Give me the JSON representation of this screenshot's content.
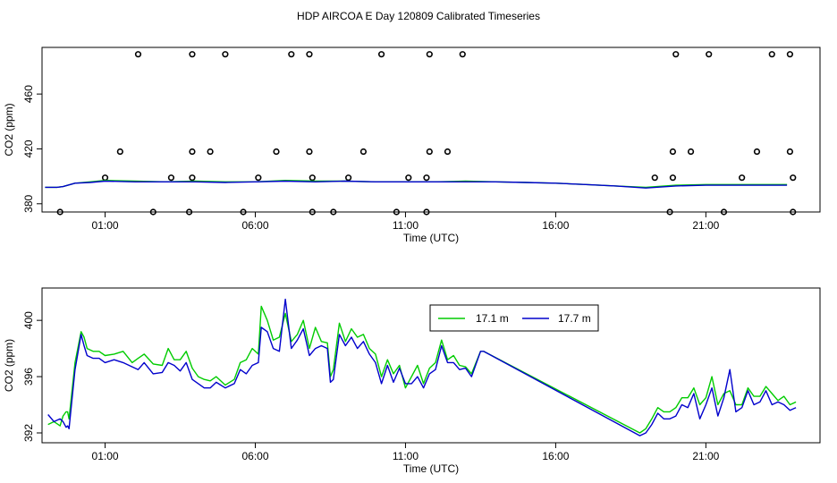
{
  "title": "HDP AIRCOA E  Day 120809  Calibrated Timeseries",
  "chart_data": [
    {
      "type": "scatter+line",
      "xlabel": "Time (UTC)",
      "ylabel": "CO2 (ppm)",
      "xticks": [
        "01:00",
        "06:00",
        "11:00",
        "16:00",
        "21:00"
      ],
      "xtick_values": [
        1,
        6,
        11,
        16,
        21
      ],
      "yticks": [
        380,
        420,
        460
      ],
      "xlim": [
        -1.1,
        24.8
      ],
      "ylim": [
        374,
        494
      ],
      "colors": {
        "line_a": "#00cc00",
        "line_b": "#0000cc",
        "points": "#000000"
      },
      "points": [
        [
          1.0,
          399
        ],
        [
          -0.5,
          374
        ],
        [
          1.5,
          418
        ],
        [
          2.1,
          489
        ],
        [
          2.6,
          374
        ],
        [
          3.2,
          399
        ],
        [
          3.8,
          374
        ],
        [
          3.9,
          399
        ],
        [
          3.9,
          418
        ],
        [
          3.9,
          489
        ],
        [
          4.5,
          418
        ],
        [
          5.0,
          489
        ],
        [
          5.6,
          374
        ],
        [
          6.1,
          399
        ],
        [
          6.7,
          418
        ],
        [
          7.2,
          489
        ],
        [
          7.8,
          489
        ],
        [
          7.8,
          418
        ],
        [
          7.9,
          399
        ],
        [
          7.9,
          374
        ],
        [
          8.6,
          374
        ],
        [
          9.1,
          399
        ],
        [
          9.6,
          418
        ],
        [
          10.2,
          489
        ],
        [
          10.7,
          374
        ],
        [
          11.1,
          399
        ],
        [
          11.7,
          374
        ],
        [
          11.7,
          399
        ],
        [
          11.8,
          418
        ],
        [
          11.8,
          489
        ],
        [
          12.4,
          418
        ],
        [
          12.9,
          489
        ],
        [
          19.3,
          399
        ],
        [
          19.8,
          374
        ],
        [
          19.9,
          399
        ],
        [
          19.9,
          418
        ],
        [
          20.0,
          489
        ],
        [
          20.5,
          418
        ],
        [
          21.1,
          489
        ],
        [
          21.6,
          374
        ],
        [
          22.2,
          399
        ],
        [
          22.7,
          418
        ],
        [
          23.2,
          489
        ],
        [
          23.8,
          489
        ],
        [
          23.8,
          418
        ],
        [
          23.9,
          399
        ],
        [
          23.9,
          374
        ]
      ],
      "series": [
        {
          "x": [
            -1.0,
            -0.6,
            -0.4,
            0.0,
            0.5,
            1.0,
            2.0,
            3.0,
            4.0,
            5.0,
            6.0,
            7.0,
            8.0,
            9.0,
            10.0,
            11.0,
            12.0,
            13.0,
            14.0,
            15.0,
            16.0,
            17.0,
            18.0,
            19.0,
            20.0,
            21.0,
            22.0,
            23.0,
            23.7
          ],
          "values": [
            392,
            392,
            392.5,
            395,
            396,
            397,
            396.5,
            396,
            396.5,
            396,
            396,
            397,
            396.5,
            396.5,
            396,
            396,
            396,
            396.5,
            396,
            395.5,
            395,
            394,
            393,
            392,
            393.5,
            394,
            394,
            394,
            394
          ]
        },
        {
          "x": [
            -1.0,
            -0.6,
            -0.4,
            0.0,
            0.5,
            1.0,
            2.0,
            3.0,
            4.0,
            5.0,
            6.0,
            7.0,
            8.0,
            9.0,
            10.0,
            11.0,
            12.0,
            13.0,
            14.0,
            15.0,
            16.0,
            17.0,
            18.0,
            19.0,
            20.0,
            21.0,
            22.0,
            23.0,
            23.7
          ],
          "values": [
            392,
            392,
            392.5,
            395,
            395.5,
            396.5,
            396,
            396,
            396,
            395.5,
            396,
            396.5,
            396,
            396.5,
            396,
            396,
            396,
            396,
            396,
            395.5,
            395,
            394,
            393,
            391.5,
            393,
            393.5,
            393.5,
            393.5,
            393.5
          ]
        }
      ]
    },
    {
      "type": "line",
      "xlabel": "Time (UTC)",
      "ylabel": "CO2 (ppm)",
      "xticks": [
        "01:00",
        "06:00",
        "11:00",
        "16:00",
        "21:00"
      ],
      "xtick_values": [
        1,
        6,
        11,
        16,
        21
      ],
      "yticks": [
        392,
        396,
        400
      ],
      "xlim": [
        -1.1,
        24.8
      ],
      "ylim": [
        391.3,
        402.3
      ],
      "legend_position": "top-center",
      "series": [
        {
          "name": "17.1 m",
          "color": "#00cc00",
          "x": [
            -0.9,
            -0.7,
            -0.5,
            -0.4,
            -0.3,
            -0.25,
            -0.2,
            0.0,
            0.2,
            0.3,
            0.4,
            0.6,
            0.8,
            1.0,
            1.3,
            1.6,
            1.9,
            2.1,
            2.3,
            2.6,
            2.9,
            3.1,
            3.3,
            3.5,
            3.7,
            3.9,
            4.1,
            4.3,
            4.5,
            4.7,
            5.0,
            5.3,
            5.5,
            5.7,
            5.9,
            6.1,
            6.2,
            6.4,
            6.6,
            6.8,
            7.0,
            7.2,
            7.4,
            7.6,
            7.8,
            8.0,
            8.2,
            8.4,
            8.5,
            8.6,
            8.8,
            9.0,
            9.2,
            9.4,
            9.6,
            9.8,
            10.0,
            10.2,
            10.4,
            10.6,
            10.8,
            11.0,
            11.2,
            11.4,
            11.6,
            11.8,
            12.0,
            12.2,
            12.4,
            12.6,
            12.8,
            13.0,
            13.2,
            13.5,
            13.6,
            18.8,
            19.0,
            19.2,
            19.4,
            19.6,
            19.8,
            20.0,
            20.2,
            20.4,
            20.6,
            20.8,
            21.0,
            21.2,
            21.4,
            21.6,
            21.8,
            22.0,
            22.2,
            22.4,
            22.6,
            22.8,
            23.0,
            23.2,
            23.4,
            23.6,
            23.8,
            24.0
          ],
          "values": [
            392.6,
            392.8,
            392.5,
            393.2,
            393.5,
            393.5,
            393.0,
            397.0,
            399.2,
            398.8,
            398.0,
            397.8,
            397.8,
            397.5,
            397.6,
            397.8,
            397.0,
            397.3,
            397.6,
            396.9,
            396.8,
            398.0,
            397.2,
            397.2,
            397.8,
            396.6,
            396.0,
            395.8,
            395.7,
            396.0,
            395.4,
            395.8,
            397.0,
            397.2,
            398.0,
            397.6,
            401.0,
            400.0,
            398.6,
            398.8,
            400.5,
            398.5,
            399.0,
            400.0,
            398.0,
            399.5,
            398.5,
            398.4,
            396.0,
            396.5,
            399.8,
            398.5,
            399.4,
            398.8,
            399.0,
            398.0,
            397.6,
            396.0,
            397.2,
            396.2,
            396.8,
            395.2,
            396.0,
            396.8,
            395.5,
            396.6,
            397.0,
            398.6,
            397.2,
            397.5,
            396.8,
            396.7,
            396.2,
            397.8,
            397.8,
            392.0,
            392.3,
            393.0,
            393.8,
            393.5,
            393.5,
            393.8,
            394.5,
            394.5,
            395.2,
            394.0,
            394.5,
            396.0,
            394.0,
            394.8,
            395.0,
            394.0,
            394.0,
            395.2,
            394.6,
            394.6,
            395.3,
            394.8,
            394.3,
            394.6,
            394.0,
            394.2
          ]
        },
        {
          "name": "17.7 m",
          "color": "#0000cc",
          "x": [
            -0.9,
            -0.7,
            -0.5,
            -0.4,
            -0.3,
            -0.25,
            -0.2,
            0.0,
            0.2,
            0.3,
            0.4,
            0.6,
            0.8,
            1.0,
            1.3,
            1.6,
            1.9,
            2.1,
            2.3,
            2.6,
            2.9,
            3.1,
            3.3,
            3.5,
            3.7,
            3.9,
            4.1,
            4.3,
            4.5,
            4.7,
            5.0,
            5.3,
            5.5,
            5.7,
            5.9,
            6.1,
            6.2,
            6.4,
            6.6,
            6.8,
            7.0,
            7.2,
            7.4,
            7.6,
            7.8,
            8.0,
            8.2,
            8.4,
            8.5,
            8.6,
            8.8,
            9.0,
            9.2,
            9.4,
            9.6,
            9.8,
            10.0,
            10.2,
            10.4,
            10.6,
            10.8,
            11.0,
            11.2,
            11.4,
            11.6,
            11.8,
            12.0,
            12.2,
            12.4,
            12.6,
            12.8,
            13.0,
            13.2,
            13.5,
            13.6,
            18.8,
            19.0,
            19.2,
            19.4,
            19.6,
            19.8,
            20.0,
            20.2,
            20.4,
            20.6,
            20.8,
            21.0,
            21.2,
            21.4,
            21.6,
            21.8,
            22.0,
            22.2,
            22.4,
            22.6,
            22.8,
            23.0,
            23.2,
            23.4,
            23.6,
            23.8,
            24.0
          ],
          "values": [
            393.3,
            392.8,
            393.0,
            392.8,
            392.4,
            392.5,
            392.3,
            396.5,
            399.0,
            398.2,
            397.5,
            397.3,
            397.3,
            397.0,
            397.2,
            397.0,
            396.7,
            396.5,
            397.0,
            396.2,
            396.3,
            397.0,
            396.8,
            396.4,
            397.0,
            395.8,
            395.5,
            395.2,
            395.2,
            395.6,
            395.2,
            395.5,
            396.5,
            396.2,
            396.8,
            397.0,
            399.5,
            399.2,
            398.0,
            397.8,
            401.5,
            398.0,
            398.6,
            399.4,
            397.5,
            398.0,
            398.2,
            398.0,
            395.6,
            395.8,
            399.0,
            398.2,
            398.8,
            398.0,
            398.5,
            397.6,
            397.0,
            395.5,
            396.8,
            395.6,
            396.6,
            395.5,
            395.5,
            396.0,
            395.2,
            396.2,
            396.5,
            398.2,
            397.0,
            397.0,
            396.5,
            396.6,
            396.0,
            397.8,
            397.8,
            391.8,
            392.0,
            392.6,
            393.4,
            393.0,
            393.0,
            393.2,
            394.0,
            393.8,
            394.8,
            393.0,
            394.0,
            395.2,
            393.2,
            394.5,
            396.5,
            393.5,
            393.8,
            395.0,
            394.0,
            394.2,
            395.0,
            394.0,
            394.2,
            394.0,
            393.6,
            393.8
          ]
        }
      ]
    }
  ]
}
